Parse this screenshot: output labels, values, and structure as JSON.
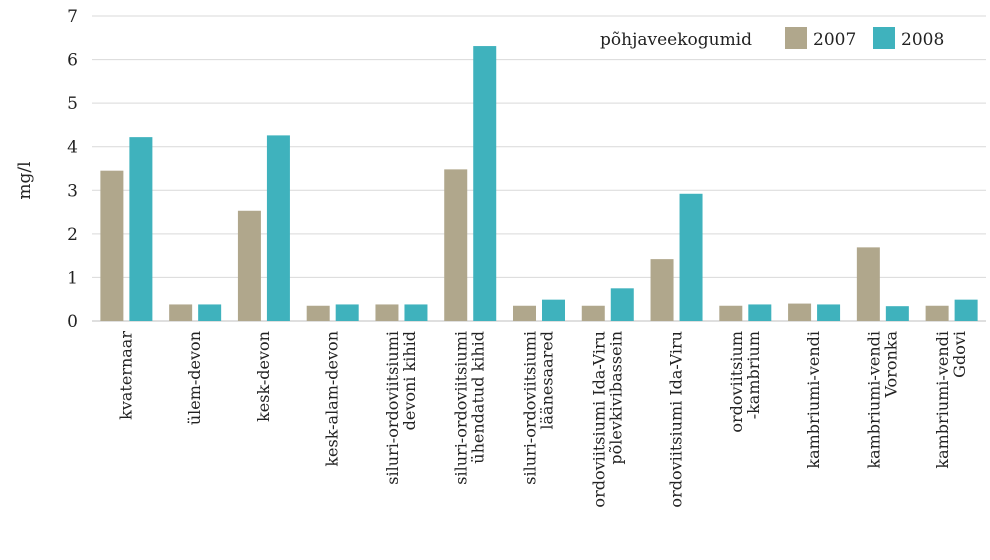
{
  "chart_data": {
    "type": "bar",
    "ylabel": "mg/l",
    "ylim": [
      0,
      7
    ],
    "yticks": [
      0,
      1,
      2,
      3,
      4,
      5,
      6,
      7
    ],
    "grid": true,
    "legend": {
      "title": "põhjaveekogumid",
      "placement": "top-right"
    },
    "categories": [
      [
        "kvaternaar"
      ],
      [
        "ülem-devon"
      ],
      [
        "kesk-devon"
      ],
      [
        "kesk-alam-devon"
      ],
      [
        "siluri-ordoviitsiumi",
        "devoni kihid"
      ],
      [
        "siluri-ordoviitsiumi",
        "ühendatud kihid"
      ],
      [
        "siluri-ordoviitsiumi",
        "läänesaared"
      ],
      [
        "ordoviitsiumi Ida-Viru",
        "põlevkivibassein"
      ],
      [
        "ordoviitsiumi Ida-Viru"
      ],
      [
        "ordoviitsium",
        "-kambrium"
      ],
      [
        "kambriumi-vendi"
      ],
      [
        "kambriumi-vendi",
        "Voronka"
      ],
      [
        "kambriumi-vendi",
        "Gdovi"
      ]
    ],
    "series": [
      {
        "name": "2007",
        "color": "#b0a78c",
        "values": [
          3.45,
          0.38,
          2.53,
          0.35,
          0.38,
          3.48,
          0.35,
          0.35,
          1.42,
          0.35,
          0.4,
          1.69,
          0.35
        ]
      },
      {
        "name": "2008",
        "color": "#3fb2bd",
        "values": [
          4.22,
          0.38,
          4.26,
          0.38,
          0.38,
          6.31,
          0.49,
          0.75,
          2.92,
          0.38,
          0.38,
          0.34,
          0.49
        ]
      }
    ]
  }
}
